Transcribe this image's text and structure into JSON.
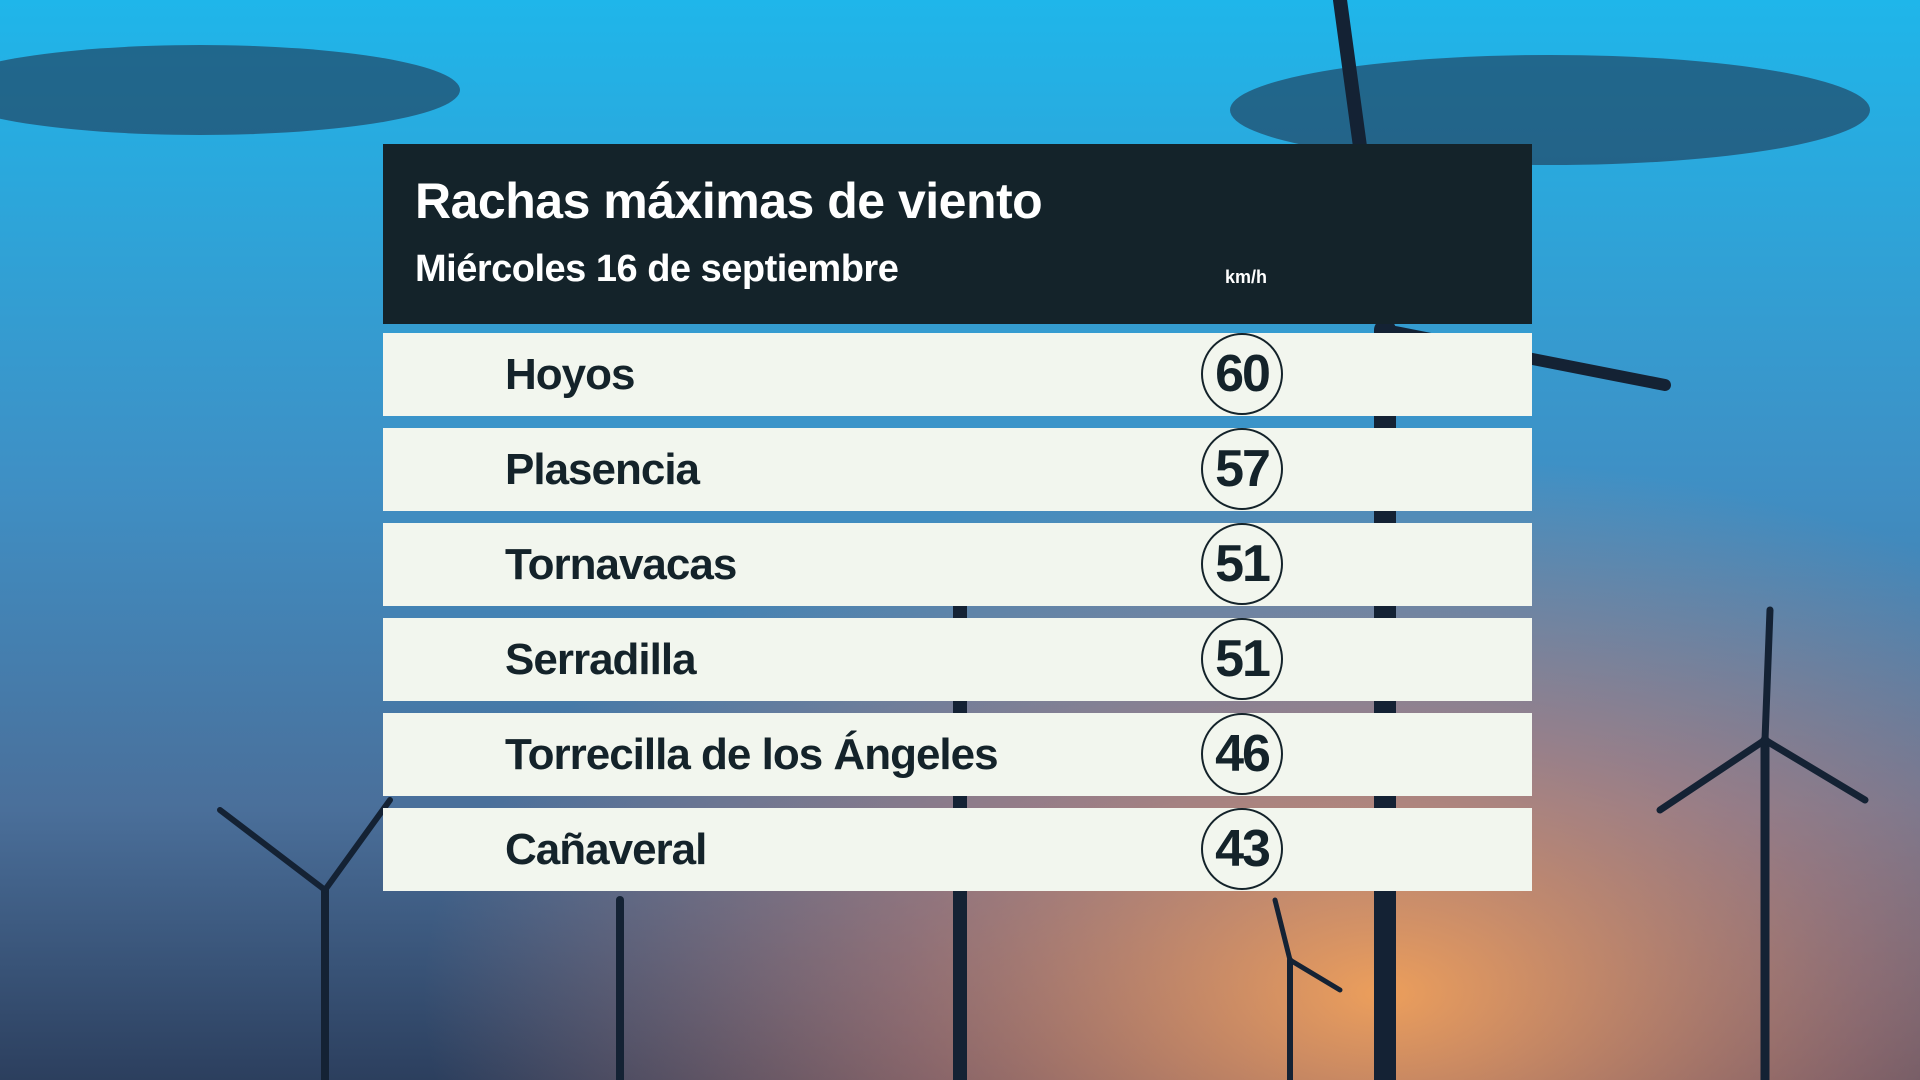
{
  "header": {
    "title": "Rachas máximas de viento",
    "subtitle": "Miércoles 16 de septiembre",
    "unit": "km/h"
  },
  "rows": [
    {
      "name": "Hoyos",
      "value": 60
    },
    {
      "name": "Plasencia",
      "value": 57
    },
    {
      "name": "Tornavacas",
      "value": 51
    },
    {
      "name": "Serradilla",
      "value": 51
    },
    {
      "name": "Torrecilla de los Ángeles",
      "value": 46
    },
    {
      "name": "Cañaveral",
      "value": 43
    }
  ]
}
